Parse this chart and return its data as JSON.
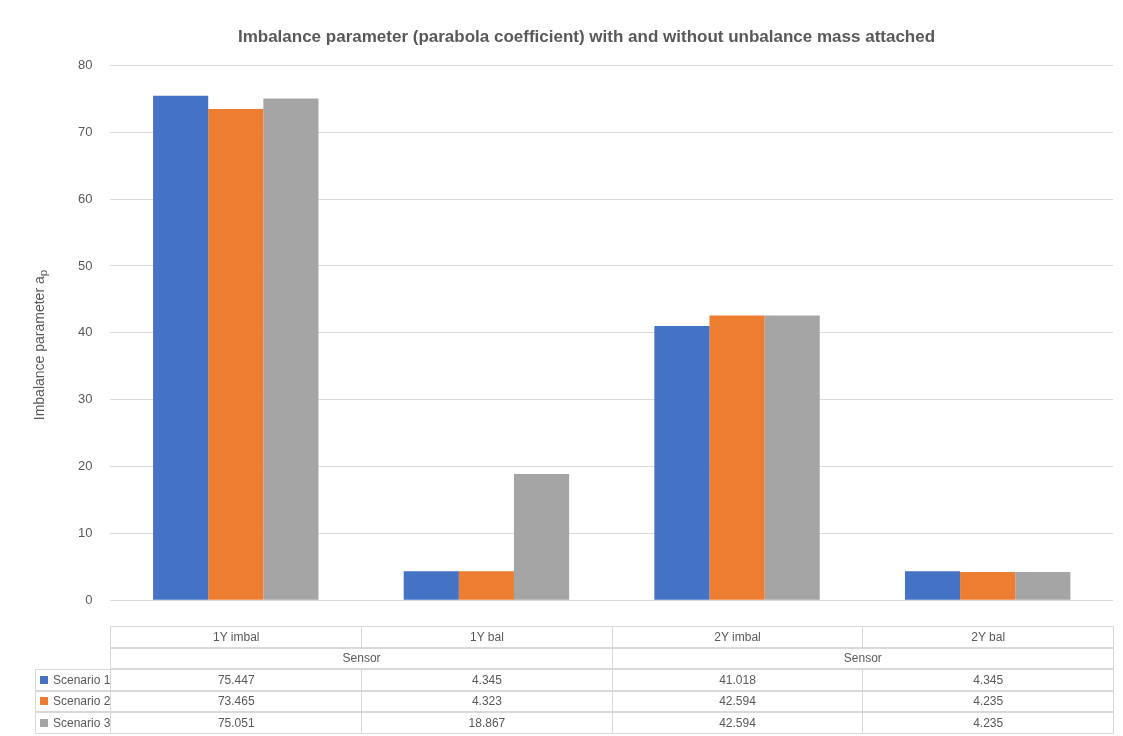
{
  "chart_data": {
    "type": "bar",
    "title": "Imbalance parameter (parabola coefficient) with and without unbalance mass attached",
    "ylabel": "Imbalance parameter a$_{p}$",
    "categories": [
      "1Y imbal",
      "1Y bal",
      "2Y imbal",
      "2Y bal"
    ],
    "series": [
      {
        "name": "Scenario 1",
        "color": "#4472c4",
        "values": [
          75.447,
          4.345,
          41.018,
          4.345
        ]
      },
      {
        "name": "Scenario 2",
        "color": "#ed7d31",
        "values": [
          73.465,
          4.323,
          42.594,
          4.235
        ]
      },
      {
        "name": "Scenario 3",
        "color": "#a5a5a5",
        "values": [
          75.051,
          18.867,
          42.594,
          4.235
        ]
      }
    ],
    "ylim": [
      0,
      80
    ],
    "yticks": [
      0,
      10,
      20,
      30,
      40,
      50,
      60,
      70,
      80
    ],
    "grid": "y",
    "legend": "bottom",
    "data_labels": true,
    "annotations": [
      "Sensor",
      "Sensor"
    ]
  }
}
